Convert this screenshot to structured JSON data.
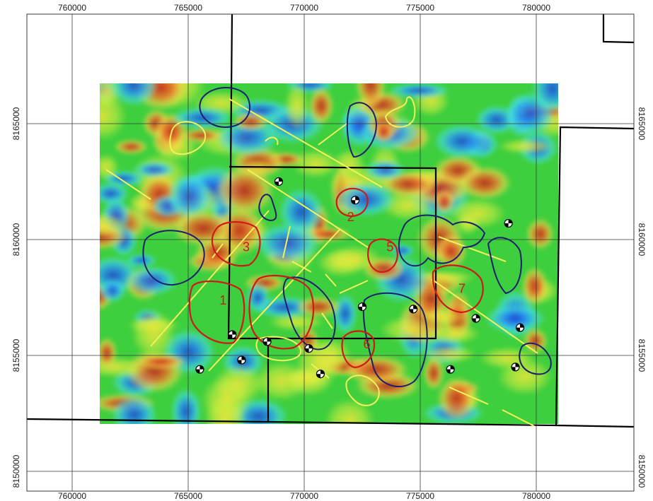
{
  "map": {
    "x_ticks": [
      {
        "label": "760000",
        "value": 760000
      },
      {
        "label": "765000",
        "value": 765000
      },
      {
        "label": "770000",
        "value": 770000
      },
      {
        "label": "775000",
        "value": 775000
      },
      {
        "label": "780000",
        "value": 780000
      }
    ],
    "y_ticks": [
      {
        "label": "8165000",
        "value": 8165000
      },
      {
        "label": "8160000",
        "value": 8160000
      },
      {
        "label": "8155000",
        "value": 8155000
      },
      {
        "label": "8150000",
        "value": 8150000
      }
    ],
    "anomaly_labels": [
      {
        "text": "1",
        "x": 766500,
        "y": 8157200
      },
      {
        "text": "2",
        "x": 772000,
        "y": 8160800
      },
      {
        "text": "3",
        "x": 767500,
        "y": 8159500
      },
      {
        "text": "5",
        "x": 773700,
        "y": 8159500
      },
      {
        "text": "6",
        "x": 772700,
        "y": 8155300
      },
      {
        "text": "7",
        "x": 776800,
        "y": 8157700
      }
    ],
    "drill_holes": [
      {
        "x": 768900,
        "y": 8162500
      },
      {
        "x": 772200,
        "y": 8161700
      },
      {
        "x": 778800,
        "y": 8160700
      },
      {
        "x": 772500,
        "y": 8157100
      },
      {
        "x": 774700,
        "y": 8157000
      },
      {
        "x": 777400,
        "y": 8156600
      },
      {
        "x": 779300,
        "y": 8156200
      },
      {
        "x": 766900,
        "y": 8155900
      },
      {
        "x": 768400,
        "y": 8155600
      },
      {
        "x": 770200,
        "y": 8155300
      },
      {
        "x": 767300,
        "y": 8154800
      },
      {
        "x": 765500,
        "y": 8154400
      },
      {
        "x": 770700,
        "y": 8154200
      },
      {
        "x": 776300,
        "y": 8154400
      },
      {
        "x": 779100,
        "y": 8154500
      }
    ],
    "colors": {
      "red_outline": "#d01818",
      "blue_outline": "#1a1f6e",
      "yellow_line": "#f2f25a",
      "boundary": "#000000",
      "grid": "#3a3a3a"
    }
  }
}
